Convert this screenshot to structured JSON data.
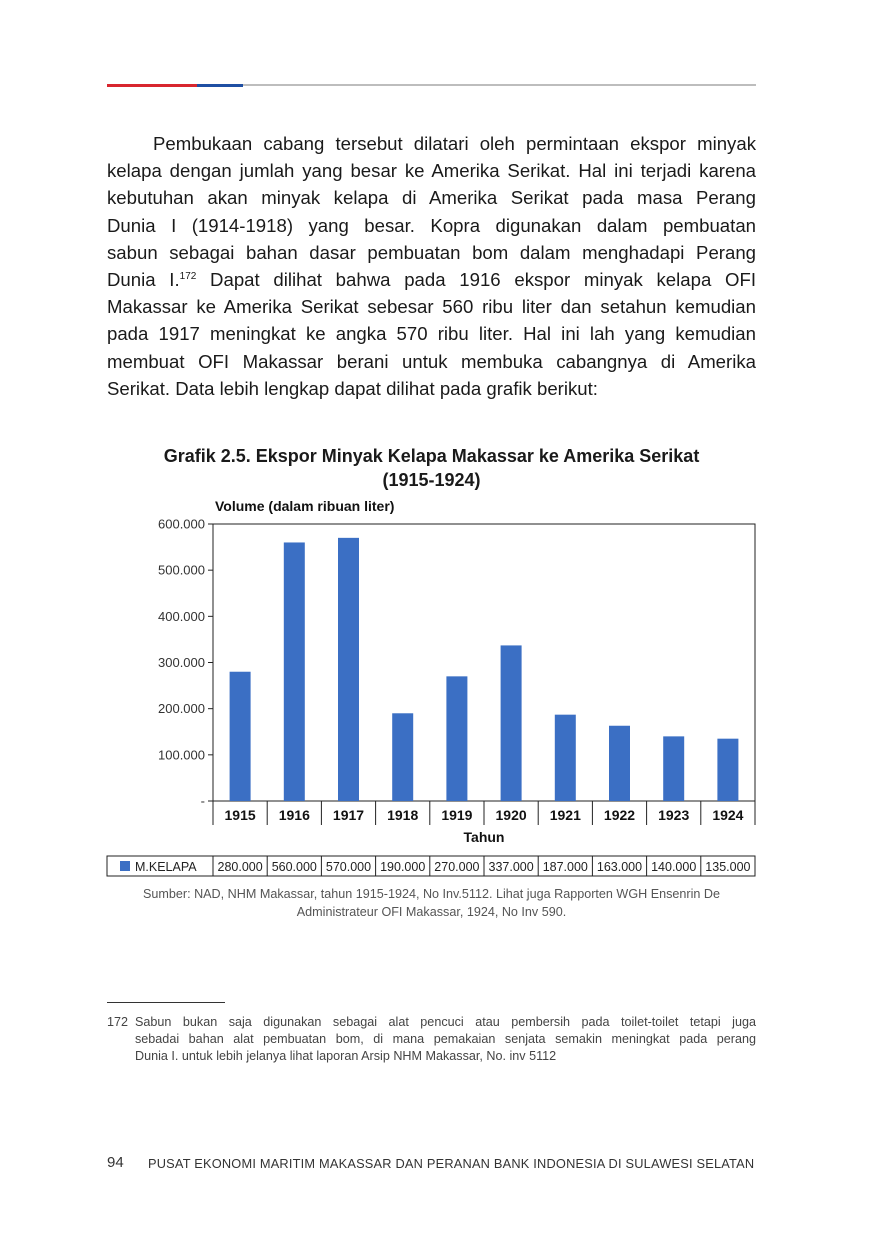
{
  "paragraph": {
    "lines": [
      "Pembukaan cabang tersebut dilatari oleh permintaan ekspor minyak",
      "kelapa dengan jumlah yang besar ke Amerika Serikat. Hal ini terjadi karena",
      "kebutuhan akan minyak kelapa di Amerika Serikat pada masa Perang",
      "Dunia I (1914-1918) yang besar. Kopra digunakan dalam pembuatan",
      "sabun sebagai bahan dasar pembuatan bom dalam menghadapi Perang",
      "Dunia I.",
      "Makassar ke Amerika Serikat sebesar 560 ribu liter dan setahun kemudian",
      "pada 1917 meningkat ke angka 570 ribu liter. Hal ini lah yang kemudian",
      "membuat OFI Makassar berani untuk membuka cabangnya di Amerika",
      "Serikat. Data lebih lengkap dapat dilihat pada grafik berikut:"
    ],
    "footnote_ref": "172",
    "line6_rest": " Dapat dilihat bahwa pada 1916 ekspor minyak kelapa OFI"
  },
  "chart_data": {
    "type": "bar",
    "title": "Grafik 2.5. Ekspor Minyak Kelapa Makassar ke Amerika Serikat",
    "subtitle": "(1915-1924)",
    "ylabel": "Volume (dalam ribuan liter)",
    "xlabel": "Tahun",
    "categories": [
      "1915",
      "1916",
      "1917",
      "1918",
      "1919",
      "1920",
      "1921",
      "1922",
      "1923",
      "1924"
    ],
    "series": [
      {
        "name": "M.KELAPA",
        "color": "#3b6fc4",
        "values": [
          280000,
          560000,
          570000,
          190000,
          270000,
          337000,
          187000,
          163000,
          140000,
          135000
        ],
        "table_labels": [
          "280.000",
          "560.000",
          "570.000",
          "190.000",
          "270.000",
          "337.000",
          "187.000",
          "163.000",
          "140.000",
          "135.000"
        ]
      }
    ],
    "ylim": [
      0,
      600000
    ],
    "yticks": [
      0,
      100000,
      200000,
      300000,
      400000,
      500000,
      600000
    ],
    "ytick_labels": [
      "-",
      "100.000",
      "200.000",
      "300.000",
      "400.000",
      "500.000",
      "600.000"
    ],
    "grid": false,
    "legend": "data-table-bottom"
  },
  "source": {
    "line1": "Sumber: NAD, NHM Makassar, tahun 1915-1924, No Inv.5112. Lihat juga Rapporten WGH Ensenrin De",
    "line2": "Administrateur OFI Makassar, 1924, No Inv 590."
  },
  "footnote": {
    "number": "172",
    "lines": [
      "Sabun bukan saja digunakan sebagai alat pencuci atau pembersih pada toilet-toilet tetapi juga",
      "sebadai bahan alat pembuatan bom, di mana pemakaian senjata semakin meningkat pada perang",
      "Dunia I. untuk lebih jelanya lihat laporan Arsip NHM Makassar, No. inv 5112"
    ]
  },
  "page": {
    "number": "94",
    "running_title": "PUSAT EKONOMI MARITIM MAKASSAR DAN PERANAN BANK INDONESIA DI SULAWESI SELATAN"
  }
}
